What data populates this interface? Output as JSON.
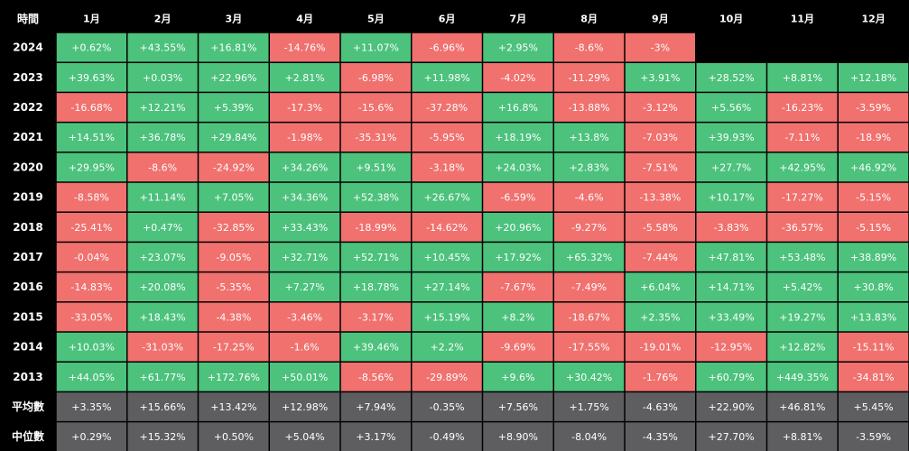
{
  "chart_data": {
    "type": "heatmap",
    "corner_label": "時間",
    "columns": [
      "1月",
      "2月",
      "3月",
      "4月",
      "5月",
      "6月",
      "7月",
      "8月",
      "9月",
      "10月",
      "11月",
      "12月"
    ],
    "rows": [
      {
        "label": "2024",
        "values": [
          "+0.62%",
          "+43.55%",
          "+16.81%",
          "-14.76%",
          "+11.07%",
          "-6.96%",
          "+2.95%",
          "-8.6%",
          "-3%",
          null,
          null,
          null
        ]
      },
      {
        "label": "2023",
        "values": [
          "+39.63%",
          "+0.03%",
          "+22.96%",
          "+2.81%",
          "-6.98%",
          "+11.98%",
          "-4.02%",
          "-11.29%",
          "+3.91%",
          "+28.52%",
          "+8.81%",
          "+12.18%"
        ]
      },
      {
        "label": "2022",
        "values": [
          "-16.68%",
          "+12.21%",
          "+5.39%",
          "-17.3%",
          "-15.6%",
          "-37.28%",
          "+16.8%",
          "-13.88%",
          "-3.12%",
          "+5.56%",
          "-16.23%",
          "-3.59%"
        ]
      },
      {
        "label": "2021",
        "values": [
          "+14.51%",
          "+36.78%",
          "+29.84%",
          "-1.98%",
          "-35.31%",
          "-5.95%",
          "+18.19%",
          "+13.8%",
          "-7.03%",
          "+39.93%",
          "-7.11%",
          "-18.9%"
        ]
      },
      {
        "label": "2020",
        "values": [
          "+29.95%",
          "-8.6%",
          "-24.92%",
          "+34.26%",
          "+9.51%",
          "-3.18%",
          "+24.03%",
          "+2.83%",
          "-7.51%",
          "+27.7%",
          "+42.95%",
          "+46.92%"
        ]
      },
      {
        "label": "2019",
        "values": [
          "-8.58%",
          "+11.14%",
          "+7.05%",
          "+34.36%",
          "+52.38%",
          "+26.67%",
          "-6.59%",
          "-4.6%",
          "-13.38%",
          "+10.17%",
          "-17.27%",
          "-5.15%"
        ]
      },
      {
        "label": "2018",
        "values": [
          "-25.41%",
          "+0.47%",
          "-32.85%",
          "+33.43%",
          "-18.99%",
          "-14.62%",
          "+20.96%",
          "-9.27%",
          "-5.58%",
          "-3.83%",
          "-36.57%",
          "-5.15%"
        ]
      },
      {
        "label": "2017",
        "values": [
          "-0.04%",
          "+23.07%",
          "-9.05%",
          "+32.71%",
          "+52.71%",
          "+10.45%",
          "+17.92%",
          "+65.32%",
          "-7.44%",
          "+47.81%",
          "+53.48%",
          "+38.89%"
        ]
      },
      {
        "label": "2016",
        "values": [
          "-14.83%",
          "+20.08%",
          "-5.35%",
          "+7.27%",
          "+18.78%",
          "+27.14%",
          "-7.67%",
          "-7.49%",
          "+6.04%",
          "+14.71%",
          "+5.42%",
          "+30.8%"
        ]
      },
      {
        "label": "2015",
        "values": [
          "-33.05%",
          "+18.43%",
          "-4.38%",
          "-3.46%",
          "-3.17%",
          "+15.19%",
          "+8.2%",
          "-18.67%",
          "+2.35%",
          "+33.49%",
          "+19.27%",
          "+13.83%"
        ]
      },
      {
        "label": "2014",
        "values": [
          "+10.03%",
          "-31.03%",
          "-17.25%",
          "-1.6%",
          "+39.46%",
          "+2.2%",
          "-9.69%",
          "-17.55%",
          "-19.01%",
          "-12.95%",
          "+12.82%",
          "-15.11%"
        ]
      },
      {
        "label": "2013",
        "values": [
          "+44.05%",
          "+61.77%",
          "+172.76%",
          "+50.01%",
          "-8.56%",
          "-29.89%",
          "+9.6%",
          "+30.42%",
          "-1.76%",
          "+60.79%",
          "+449.35%",
          "-34.81%"
        ]
      }
    ],
    "summary_rows": [
      {
        "label": "平均數",
        "values": [
          "+3.35%",
          "+15.66%",
          "+13.42%",
          "+12.98%",
          "+7.94%",
          "-0.35%",
          "+7.56%",
          "+1.75%",
          "-4.63%",
          "+22.90%",
          "+46.81%",
          "+5.45%"
        ]
      },
      {
        "label": "中位數",
        "values": [
          "+0.29%",
          "+15.32%",
          "+0.50%",
          "+5.04%",
          "+3.17%",
          "-0.49%",
          "+8.90%",
          "-8.04%",
          "-4.35%",
          "+27.70%",
          "+8.81%",
          "-3.59%"
        ]
      }
    ],
    "colors": {
      "positive": "#4cc27c",
      "negative": "#f0716e",
      "summary": "#5e5e60",
      "header_bg": "#000000",
      "header_text": "#ffffff",
      "cell_text": "#ffffff"
    }
  }
}
